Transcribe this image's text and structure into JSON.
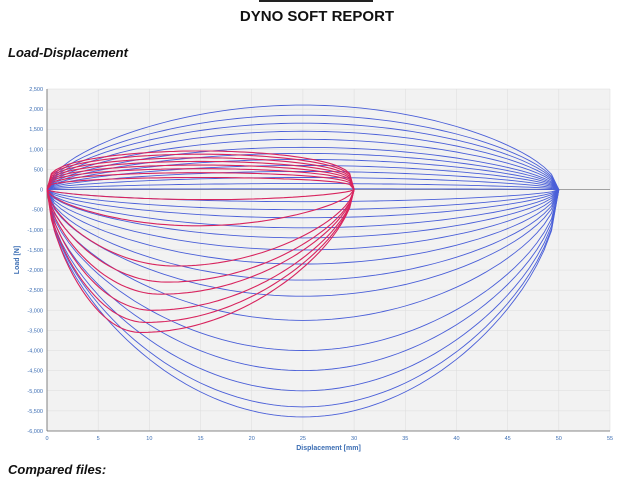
{
  "report": {
    "title": "DYNO SOFT REPORT",
    "section_load_displacement": "Load-Displacement",
    "section_compared_files": "Compared files:"
  },
  "colors": {
    "blue_series": "#4a5fd8",
    "red_series": "#d8245e",
    "axis_text": "#3b6db3",
    "plot_bg": "#f2f2f2"
  },
  "chart_data": {
    "type": "line",
    "xlabel": "Displacement [mm]",
    "ylabel": "Load [N]",
    "xlim": [
      0,
      55
    ],
    "ylim": [
      -6000,
      2500
    ],
    "x_ticks": [
      0,
      5,
      10,
      15,
      20,
      25,
      30,
      35,
      40,
      45,
      50,
      55
    ],
    "y_ticks": [
      -6000,
      -5500,
      -5000,
      -4500,
      -4000,
      -3500,
      -3000,
      -2500,
      -2000,
      -1500,
      -1000,
      -500,
      0,
      500,
      1000,
      1500,
      2000,
      2500
    ],
    "y_tick_labels": [
      "-6,000",
      "-5,500",
      "-5,000",
      "-4,500",
      "-4,000",
      "-3,500",
      "-3,000",
      "-2,500",
      "-2,000",
      "-1,500",
      "-1,000",
      "-500",
      "0",
      "500",
      "1,000",
      "1,500",
      "2,000",
      "2,500"
    ],
    "grid": true,
    "blue_group": {
      "stroke_mm": 50,
      "extension_peaks": [
        2100,
        1850,
        1650,
        1450,
        1250,
        1050,
        900,
        750,
        600,
        450,
        300,
        150,
        20
      ],
      "compression_peaks": [
        -300,
        -500,
        -700,
        -950,
        -1200,
        -1500,
        -1850,
        -2250,
        -2650,
        -3250,
        -4000,
        -4500,
        -5000,
        -5400,
        -5650
      ]
    },
    "red_group": {
      "stroke_mm": 30,
      "extension_peaks": [
        960,
        880,
        790,
        700,
        610,
        520,
        420,
        300
      ],
      "compression_peaks": [
        -250,
        -900,
        -1900,
        -2300,
        -2600,
        -3000,
        -3300,
        -3550
      ]
    },
    "zero_line_end_mm": 55
  }
}
